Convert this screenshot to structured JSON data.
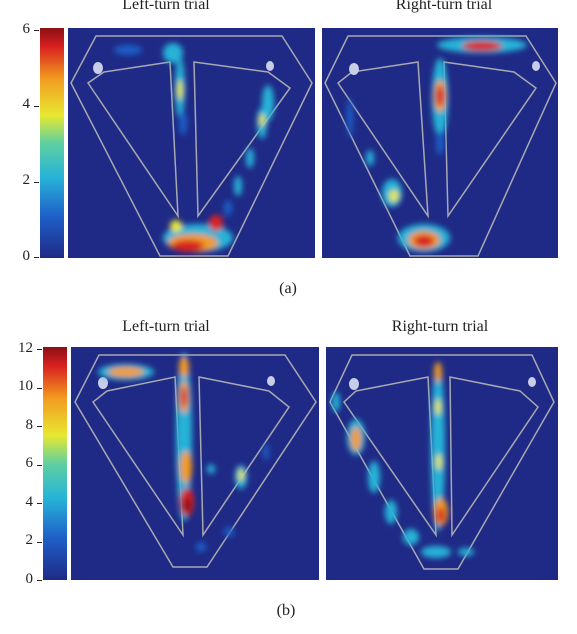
{
  "panel_a": {
    "caption": "(a)",
    "left_title": "Left-turn trial",
    "right_title": "Right-turn trial",
    "colorbar_ticks": [
      "6",
      "4",
      "2",
      "0"
    ],
    "colorbar_range": [
      0,
      6
    ]
  },
  "panel_b": {
    "caption": "(b)",
    "left_title": "Left-turn trial",
    "right_title": "Right-turn trial",
    "colorbar_ticks": [
      "12",
      "10",
      "8",
      "6",
      "4",
      "2",
      "0"
    ],
    "colorbar_range": [
      0,
      12
    ]
  },
  "colors": {
    "background": "#1f2a86",
    "maze_outline": "#a8a8b0",
    "colormap": [
      "#1f2a86",
      "#1f5fc8",
      "#26b3d8",
      "#5fd0a0",
      "#e8e830",
      "#f29b20",
      "#d82020",
      "#8a0f14"
    ]
  }
}
